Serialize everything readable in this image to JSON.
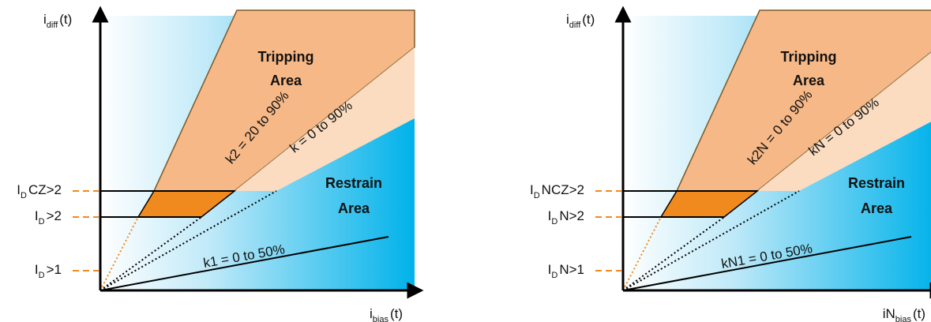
{
  "diagrams": [
    {
      "y_axis": {
        "main": "i",
        "sub": "diff",
        "suffix": "(t)"
      },
      "x_axis": {
        "main": "i",
        "sub": "bias",
        "suffix": "(t)"
      },
      "tripping": [
        "Tripping",
        "Area"
      ],
      "restrain": [
        "Restrain",
        "Area"
      ],
      "slopes": [
        "k2 = 20 to 90%",
        "k = 0 to 90%",
        "k1 = 0 to 50%"
      ],
      "levels": [
        {
          "main": "I",
          "sub": "D",
          "suffix": "CZ>2"
        },
        {
          "main": "I",
          "sub": "D",
          "suffix": ">2"
        },
        {
          "main": "I",
          "sub": "D",
          "suffix": ">1"
        }
      ]
    },
    {
      "y_axis": {
        "main": "i",
        "sub": "diff",
        "suffix": "(t)"
      },
      "x_axis": {
        "main": "iN",
        "sub": "bias",
        "suffix": "(t)"
      },
      "tripping": [
        "Tripping",
        "Area"
      ],
      "restrain": [
        "Restrain",
        "Area"
      ],
      "slopes": [
        "k2N = 0 to 90%",
        "kN = 0 to 90%",
        "kN1 = 0 to 50%"
      ],
      "levels": [
        {
          "main": "I",
          "sub": "D",
          "suffix": "NCZ>2"
        },
        {
          "main": "I",
          "sub": "D",
          "suffix": "N>2"
        },
        {
          "main": "I",
          "sub": "D",
          "suffix": "N>1"
        }
      ]
    }
  ]
}
